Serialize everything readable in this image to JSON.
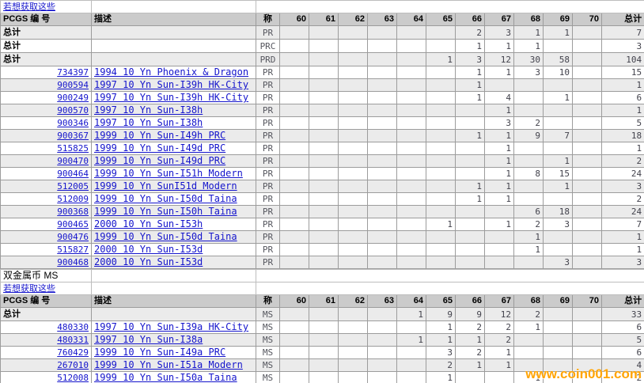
{
  "watermark": "www.coin001.com",
  "columns": {
    "pcgs": "PCGS 编 号",
    "desc": "描述",
    "grade": "称",
    "grades": [
      "60",
      "61",
      "62",
      "63",
      "64",
      "65",
      "66",
      "67",
      "68",
      "69",
      "70"
    ],
    "total": "总计"
  },
  "colors": {
    "header_bg": "#cbcbcb",
    "shade_row_bg": "#ebebeb",
    "grid_border": "#9c9c9c",
    "link_blue": "#1414cc",
    "count_text": "#42424c",
    "watermark_orange": "#ffa405"
  },
  "sections": [
    {
      "titles": [
        {
          "text": "若想获取这些",
          "type": "link"
        }
      ],
      "rows": [
        {
          "kind": "total",
          "label": "总计",
          "grade": "PR",
          "values": [
            "",
            "",
            "",
            "",
            "",
            "",
            "2",
            "3",
            "1",
            "1",
            ""
          ],
          "total": "7"
        },
        {
          "kind": "total",
          "label": "总计",
          "grade": "PRC",
          "values": [
            "",
            "",
            "",
            "",
            "",
            "",
            "1",
            "1",
            "1",
            "",
            ""
          ],
          "total": "3"
        },
        {
          "kind": "total",
          "label": "总计",
          "grade": "PRD",
          "values": [
            "",
            "",
            "",
            "",
            "",
            "1",
            "3",
            "12",
            "30",
            "58",
            ""
          ],
          "total": "104"
        },
        {
          "kind": "coin",
          "pcgs": "734397",
          "desc": "1994 10 Yn Phoenix & Dragon",
          "grade": "PR",
          "values": [
            "",
            "",
            "",
            "",
            "",
            "",
            "1",
            "1",
            "3",
            "10",
            ""
          ],
          "total": "15"
        },
        {
          "kind": "coin",
          "pcgs": "900594",
          "desc": "1997 10 Yn Sun-I39h HK-City",
          "grade": "PR",
          "values": [
            "",
            "",
            "",
            "",
            "",
            "",
            "1",
            "",
            "",
            "",
            ""
          ],
          "total": "1"
        },
        {
          "kind": "coin",
          "pcgs": "900249",
          "desc": "1997 10 Yn Sun-I39h HK-City",
          "grade": "PR",
          "values": [
            "",
            "",
            "",
            "",
            "",
            "",
            "1",
            "4",
            "",
            "1",
            ""
          ],
          "total": "6"
        },
        {
          "kind": "coin",
          "pcgs": "900570",
          "desc": "1997 10 Yn Sun-I38h",
          "grade": "PR",
          "values": [
            "",
            "",
            "",
            "",
            "",
            "",
            "",
            "1",
            "",
            "",
            ""
          ],
          "total": "1"
        },
        {
          "kind": "coin",
          "pcgs": "900346",
          "desc": "1997 10 Yn Sun-I38h",
          "grade": "PR",
          "values": [
            "",
            "",
            "",
            "",
            "",
            "",
            "",
            "3",
            "2",
            "",
            ""
          ],
          "total": "5"
        },
        {
          "kind": "coin",
          "pcgs": "900367",
          "desc": "1999 10 Yn Sun-I49h PRC",
          "grade": "PR",
          "values": [
            "",
            "",
            "",
            "",
            "",
            "",
            "1",
            "1",
            "9",
            "7",
            ""
          ],
          "total": "18"
        },
        {
          "kind": "coin",
          "pcgs": "515825",
          "desc": "1999 10 Yn Sun-I49d PRC",
          "grade": "PR",
          "values": [
            "",
            "",
            "",
            "",
            "",
            "",
            "",
            "1",
            "",
            "",
            ""
          ],
          "total": "1"
        },
        {
          "kind": "coin",
          "pcgs": "900470",
          "desc": "1999 10 Yn Sun-I49d PRC",
          "grade": "PR",
          "values": [
            "",
            "",
            "",
            "",
            "",
            "",
            "",
            "1",
            "",
            "1",
            ""
          ],
          "total": "2"
        },
        {
          "kind": "coin",
          "pcgs": "900464",
          "desc": "1999 10 Yn Sun-I51h Modern",
          "grade": "PR",
          "values": [
            "",
            "",
            "",
            "",
            "",
            "",
            "",
            "1",
            "8",
            "15",
            ""
          ],
          "total": "24"
        },
        {
          "kind": "coin",
          "pcgs": "512005",
          "desc": "1999 10 Yn SunI51d Modern",
          "grade": "PR",
          "values": [
            "",
            "",
            "",
            "",
            "",
            "",
            "1",
            "1",
            "",
            "1",
            ""
          ],
          "total": "3"
        },
        {
          "kind": "coin",
          "pcgs": "512009",
          "desc": "1999 10 Yn Sun-I50d Taina",
          "grade": "PR",
          "values": [
            "",
            "",
            "",
            "",
            "",
            "",
            "1",
            "1",
            "",
            "",
            ""
          ],
          "total": "2"
        },
        {
          "kind": "coin",
          "pcgs": "900368",
          "desc": "1999 10 Yn Sun-I50h Taina",
          "grade": "PR",
          "values": [
            "",
            "",
            "",
            "",
            "",
            "",
            "",
            "",
            "6",
            "18",
            ""
          ],
          "total": "24"
        },
        {
          "kind": "coin",
          "pcgs": "900465",
          "desc": "2000 10 Yn Sun-I53h",
          "grade": "PR",
          "values": [
            "",
            "",
            "",
            "",
            "",
            "1",
            "",
            "1",
            "2",
            "3",
            ""
          ],
          "total": "7"
        },
        {
          "kind": "coin",
          "pcgs": "900476",
          "desc": "1999 10 Yn Sun-I50d Taina",
          "grade": "PR",
          "values": [
            "",
            "",
            "",
            "",
            "",
            "",
            "",
            "",
            "1",
            "",
            ""
          ],
          "total": "1"
        },
        {
          "kind": "coin",
          "pcgs": "515827",
          "desc": "2000 10 Yn Sun-I53d",
          "grade": "PR",
          "values": [
            "",
            "",
            "",
            "",
            "",
            "",
            "",
            "",
            "1",
            "",
            ""
          ],
          "total": "1"
        },
        {
          "kind": "coin",
          "pcgs": "900468",
          "desc": "2000 10 Yn Sun-I53d",
          "grade": "PR",
          "values": [
            "",
            "",
            "",
            "",
            "",
            "",
            "",
            "",
            "",
            "3",
            ""
          ],
          "total": "3"
        }
      ]
    },
    {
      "titles": [
        {
          "text": "双金属币 MS",
          "type": "text"
        },
        {
          "text": "若想获取这些",
          "type": "link"
        }
      ],
      "rows": [
        {
          "kind": "total",
          "label": "总计",
          "grade": "MS",
          "values": [
            "",
            "",
            "",
            "",
            "1",
            "9",
            "9",
            "12",
            "2",
            "",
            ""
          ],
          "total": "33"
        },
        {
          "kind": "coin",
          "pcgs": "480330",
          "desc": "1997 10 Yn Sun-I39a HK-City",
          "grade": "MS",
          "values": [
            "",
            "",
            "",
            "",
            "",
            "1",
            "2",
            "2",
            "1",
            "",
            ""
          ],
          "total": "6"
        },
        {
          "kind": "coin",
          "pcgs": "480331",
          "desc": "1997 10 Yn Sun-I38a",
          "grade": "MS",
          "values": [
            "",
            "",
            "",
            "",
            "1",
            "1",
            "1",
            "2",
            "",
            "",
            ""
          ],
          "total": "5"
        },
        {
          "kind": "coin",
          "pcgs": "760429",
          "desc": "1999 10 Yn Sun-I49a PRC",
          "grade": "MS",
          "values": [
            "",
            "",
            "",
            "",
            "",
            "3",
            "2",
            "1",
            "",
            "",
            ""
          ],
          "total": "6"
        },
        {
          "kind": "coin",
          "pcgs": "267010",
          "desc": "1999 10 Yn Sun-I51a Modern",
          "grade": "MS",
          "values": [
            "",
            "",
            "",
            "",
            "",
            "2",
            "1",
            "1",
            "",
            "",
            ""
          ],
          "total": "4"
        },
        {
          "kind": "coin",
          "pcgs": "512008",
          "desc": "1999 10 Yn Sun-I50a Taina",
          "grade": "MS",
          "values": [
            "",
            "",
            "",
            "",
            "",
            "1",
            "",
            "",
            "1",
            "",
            ""
          ],
          "total": "2"
        }
      ]
    }
  ]
}
